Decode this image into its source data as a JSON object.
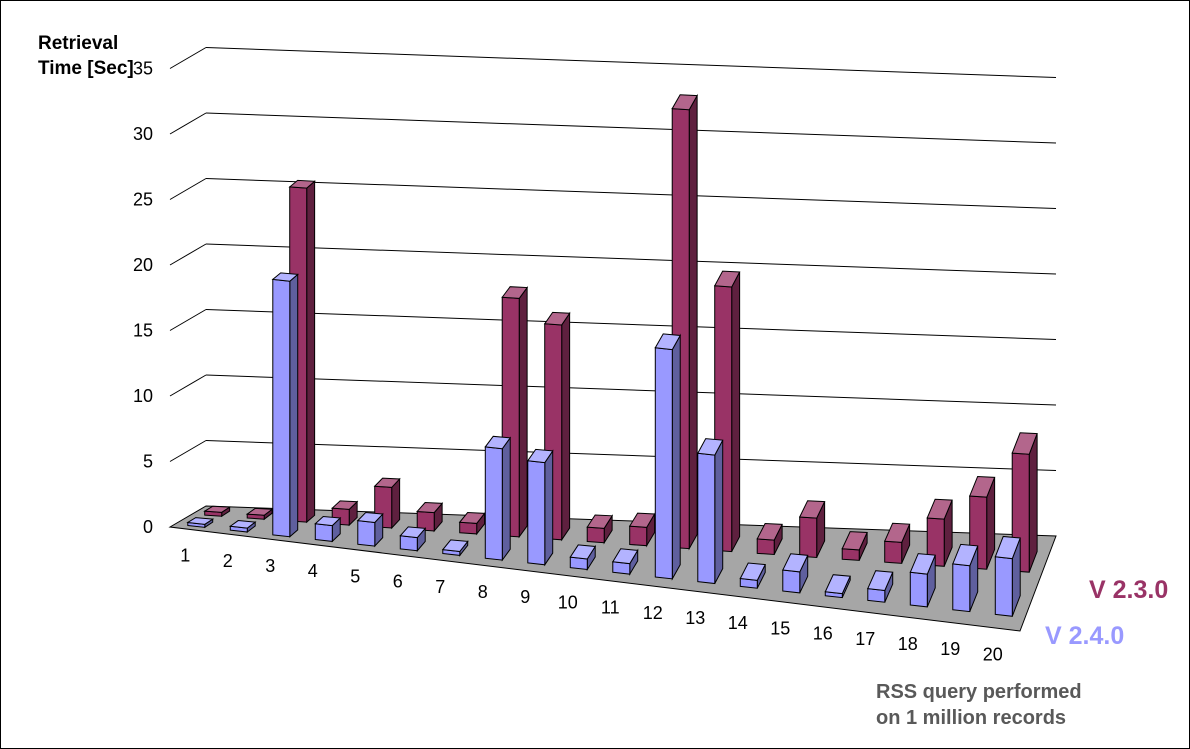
{
  "chart_data": {
    "type": "bar",
    "ylabel_lines": [
      "Retrieval",
      "Time [Sec]"
    ],
    "xlabel_lines": [
      "RSS query performed",
      "on 1 million records"
    ],
    "ylim": [
      0,
      35
    ],
    "yticks": [
      0,
      5,
      10,
      15,
      20,
      25,
      30,
      35
    ],
    "grid": true,
    "categories": [
      "1",
      "2",
      "3",
      "4",
      "5",
      "6",
      "7",
      "8",
      "9",
      "10",
      "11",
      "12",
      "13",
      "14",
      "15",
      "16",
      "17",
      "18",
      "19",
      "20"
    ],
    "series": [
      {
        "name": "V 2.4.0",
        "color": "#9999ff",
        "values": [
          0.2,
          0.3,
          19.5,
          1.2,
          1.8,
          1.0,
          0.3,
          8.5,
          7.8,
          0.8,
          0.8,
          17.5,
          9.8,
          0.6,
          1.6,
          0.3,
          0.9,
          2.5,
          3.5,
          4.4
        ]
      },
      {
        "name": "V 2.3.0",
        "color": "#993366",
        "values": [
          0.3,
          0.3,
          25.5,
          1.2,
          3.1,
          1.4,
          0.8,
          18.2,
          16.4,
          1.1,
          1.4,
          33.5,
          20.2,
          1.1,
          3.0,
          0.8,
          1.6,
          3.6,
          5.5,
          9.0
        ]
      }
    ],
    "legend_placement": "right"
  }
}
